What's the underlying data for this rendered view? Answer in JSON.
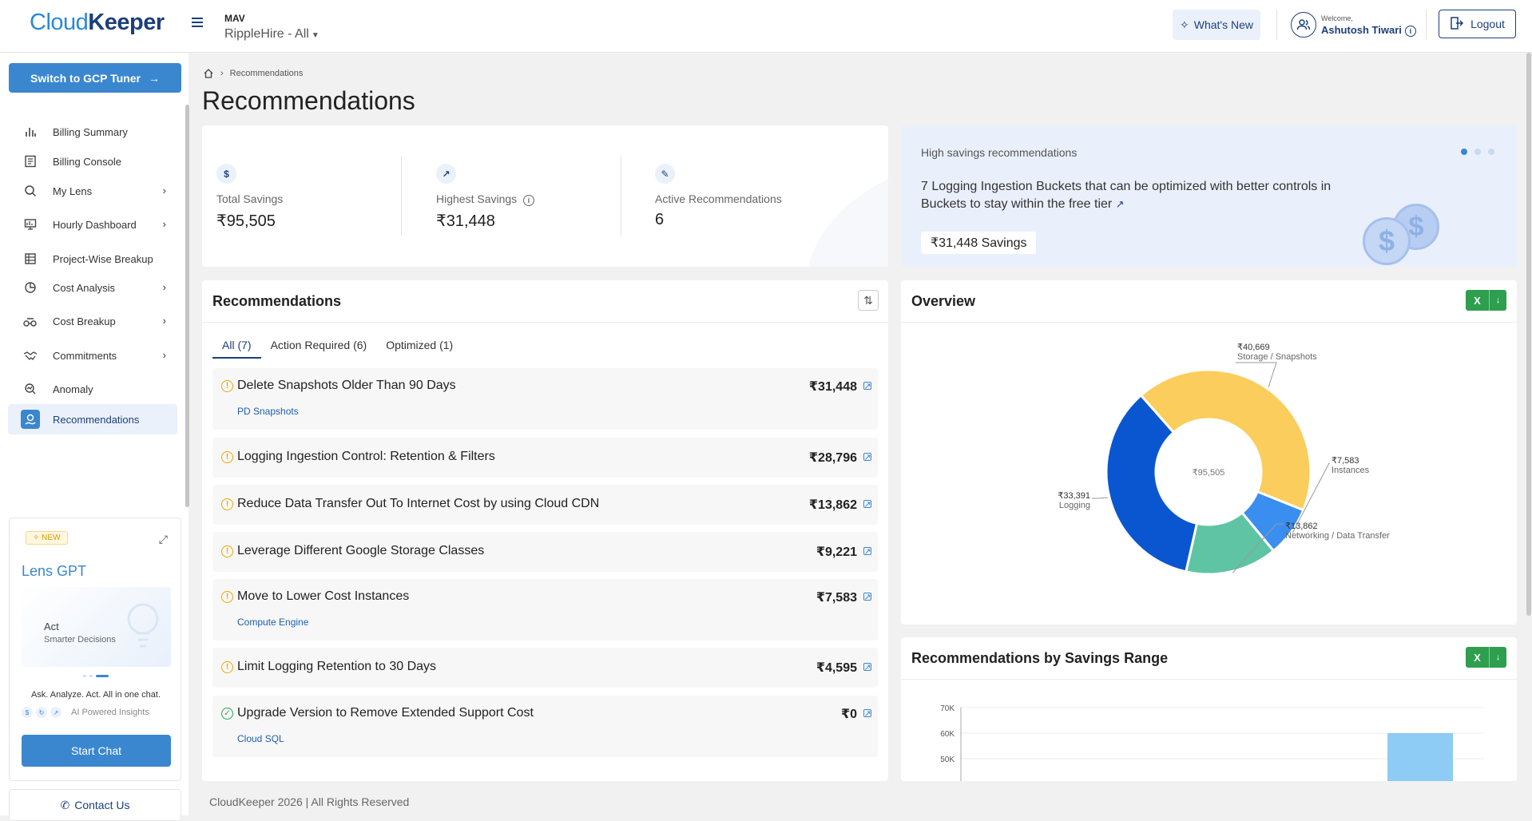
{
  "header": {
    "logo_part1": "Cloud",
    "logo_part2": "Keeper",
    "org": "MAV",
    "project": "RippleHire - All",
    "whats_new": "What's New",
    "welcome_small": "Welcome,",
    "user_name": "Ashutosh Tiwari",
    "logout": "Logout"
  },
  "sidebar": {
    "switch_button": "Switch to GCP Tuner",
    "items": [
      {
        "label": "Billing Summary",
        "icon": "bar-chart-icon",
        "has_children": false
      },
      {
        "label": "Billing Console",
        "icon": "console-icon",
        "has_children": false
      },
      {
        "label": "My Lens",
        "icon": "lens-icon",
        "has_children": true
      },
      {
        "label": "Hourly Dashboard",
        "icon": "dashboard-icon",
        "has_children": true
      },
      {
        "label": "Project-Wise Breakup",
        "icon": "grid-icon",
        "has_children": false
      },
      {
        "label": "Cost Analysis",
        "icon": "cost-analysis-icon",
        "has_children": true
      },
      {
        "label": "Cost Breakup",
        "icon": "cost-breakup-icon",
        "has_children": true
      },
      {
        "label": "Commitments",
        "icon": "handshake-icon",
        "has_children": true
      },
      {
        "label": "Anomaly",
        "icon": "anomaly-icon",
        "has_children": false
      },
      {
        "label": "Recommendations",
        "icon": "recommendations-icon",
        "has_children": false,
        "active": true
      }
    ],
    "gpt": {
      "badge": "NEW",
      "title": "Lens GPT",
      "preview_title": "Act",
      "preview_sub": "Smarter Decisions",
      "tagline": "Ask. Analyze. Act. All in one chat.",
      "insights": "AI Powered Insights",
      "start_chat": "Start Chat"
    },
    "contact": "Contact Us"
  },
  "breadcrumb": {
    "current": "Recommendations"
  },
  "page_title": "Recommendations",
  "stats": [
    {
      "label": "Total Savings",
      "value": "₹95,505",
      "icon": "dollar-icon"
    },
    {
      "label": "Highest Savings",
      "value": "₹31,448",
      "icon": "trend-up-icon"
    },
    {
      "label": "Active Recommendations",
      "value": "6",
      "icon": "wrench-icon"
    }
  ],
  "high_savings": {
    "label": "High savings recommendations",
    "description": "7 Logging Ingestion Buckets that can be optimized with better controls in Buckets to stay within the free tier",
    "savings": "₹31,448 Savings"
  },
  "recommendations": {
    "title": "Recommendations",
    "tabs": [
      "All (7)",
      "Action Required (6)",
      "Optimized (1)"
    ],
    "items": [
      {
        "title": "Delete Snapshots Older Than 90 Days",
        "value": "₹31,448",
        "sub": "PD Snapshots",
        "status": "warning"
      },
      {
        "title": "Logging Ingestion Control: Retention & Filters",
        "value": "₹28,796",
        "sub": "",
        "status": "warning"
      },
      {
        "title": "Reduce Data Transfer Out To Internet Cost by using Cloud CDN",
        "value": "₹13,862",
        "sub": "",
        "status": "warning"
      },
      {
        "title": "Leverage Different Google Storage Classes",
        "value": "₹9,221",
        "sub": "",
        "status": "warning"
      },
      {
        "title": "Move to Lower Cost Instances",
        "value": "₹7,583",
        "sub": "Compute Engine",
        "status": "warning"
      },
      {
        "title": "Limit Logging Retention to 30 Days",
        "value": "₹4,595",
        "sub": "",
        "status": "warning"
      },
      {
        "title": "Upgrade Version to Remove Extended Support Cost",
        "value": "₹0",
        "sub": "Cloud SQL",
        "status": "ok"
      }
    ]
  },
  "overview": {
    "title": "Overview",
    "center_label": "₹95,505",
    "colors": {
      "storage": "#fbcd5c",
      "instances": "#3a8ef0",
      "networking": "#5fc4a4",
      "logging": "#0a56d0"
    }
  },
  "chart_data": [
    {
      "type": "pie",
      "donut": true,
      "categories": [
        "Storage / Snapshots",
        "Instances",
        "Networking / Data Transfer",
        "Logging"
      ],
      "values": [
        40669,
        7583,
        13862,
        33391
      ],
      "value_labels": [
        "₹40,669",
        "₹7,583",
        "₹13,862",
        "₹33,391"
      ]
    },
    {
      "type": "bar",
      "title": "Recommendations by Savings Range",
      "y_ticks": [
        "70K",
        "60K",
        "50K"
      ],
      "values": [
        60000
      ],
      "ylim": [
        50000,
        70000
      ]
    }
  ],
  "footer": "CloudKeeper 2026 | All Rights Reserved"
}
